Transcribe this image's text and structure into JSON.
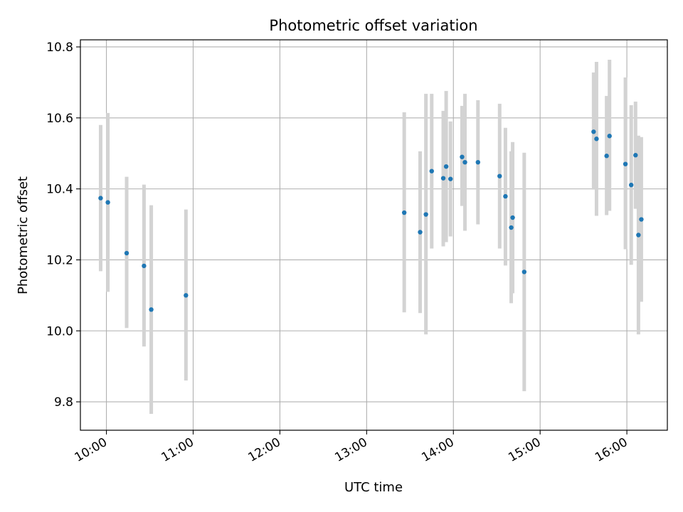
{
  "chart_data": {
    "type": "scatter",
    "title": "Photometric offset variation",
    "xlabel": "UTC time",
    "ylabel": "Photometric offset",
    "x_axis": "time",
    "xlim": [
      "09:42",
      "16:28"
    ],
    "ylim": [
      9.72,
      10.82
    ],
    "x_ticks": [
      "10:00",
      "11:00",
      "12:00",
      "13:00",
      "14:00",
      "15:00",
      "16:00"
    ],
    "y_ticks": [
      "9.8",
      "10.0",
      "10.2",
      "10.4",
      "10.6",
      "10.8"
    ],
    "grid": true,
    "marker_color": "#1f77b4",
    "errorbar_color": "#d3d3d3",
    "points": [
      {
        "t": "09:56",
        "y": 10.374,
        "low": 10.168,
        "high": 10.58
      },
      {
        "t": "10:01",
        "y": 10.362,
        "low": 10.11,
        "high": 10.614
      },
      {
        "t": "10:14",
        "y": 10.219,
        "low": 10.008,
        "high": 10.434
      },
      {
        "t": "10:26",
        "y": 10.183,
        "low": 9.956,
        "high": 10.412
      },
      {
        "t": "10:31",
        "y": 10.06,
        "low": 9.766,
        "high": 10.354
      },
      {
        "t": "10:55",
        "y": 10.1,
        "low": 9.86,
        "high": 10.342
      },
      {
        "t": "13:26",
        "y": 10.333,
        "low": 10.052,
        "high": 10.616
      },
      {
        "t": "13:37",
        "y": 10.278,
        "low": 10.05,
        "high": 10.506
      },
      {
        "t": "13:41",
        "y": 10.328,
        "low": 9.99,
        "high": 10.668
      },
      {
        "t": "13:45",
        "y": 10.45,
        "low": 10.232,
        "high": 10.668
      },
      {
        "t": "13:53",
        "y": 10.43,
        "low": 10.238,
        "high": 10.62
      },
      {
        "t": "13:55",
        "y": 10.463,
        "low": 10.25,
        "high": 10.676
      },
      {
        "t": "13:58",
        "y": 10.428,
        "low": 10.266,
        "high": 10.59
      },
      {
        "t": "14:06",
        "y": 10.49,
        "low": 10.352,
        "high": 10.634
      },
      {
        "t": "14:08",
        "y": 10.475,
        "low": 10.282,
        "high": 10.668
      },
      {
        "t": "14:17",
        "y": 10.475,
        "low": 10.3,
        "high": 10.65
      },
      {
        "t": "14:32",
        "y": 10.436,
        "low": 10.232,
        "high": 10.64
      },
      {
        "t": "14:36",
        "y": 10.379,
        "low": 10.184,
        "high": 10.572
      },
      {
        "t": "14:40",
        "y": 10.291,
        "low": 10.078,
        "high": 10.506
      },
      {
        "t": "14:41",
        "y": 10.319,
        "low": 10.106,
        "high": 10.532
      },
      {
        "t": "14:49",
        "y": 10.166,
        "low": 9.83,
        "high": 10.502
      },
      {
        "t": "15:37",
        "y": 10.561,
        "low": 10.398,
        "high": 10.728
      },
      {
        "t": "15:39",
        "y": 10.541,
        "low": 10.324,
        "high": 10.758
      },
      {
        "t": "15:46",
        "y": 10.493,
        "low": 10.326,
        "high": 10.662
      },
      {
        "t": "15:48",
        "y": 10.549,
        "low": 10.338,
        "high": 10.764
      },
      {
        "t": "15:59",
        "y": 10.47,
        "low": 10.23,
        "high": 10.714
      },
      {
        "t": "16:03",
        "y": 10.411,
        "low": 10.186,
        "high": 10.636
      },
      {
        "t": "16:06",
        "y": 10.495,
        "low": 10.344,
        "high": 10.646
      },
      {
        "t": "16:08",
        "y": 10.27,
        "low": 9.99,
        "high": 10.55
      },
      {
        "t": "16:10",
        "y": 10.314,
        "low": 10.082,
        "high": 10.546
      }
    ]
  }
}
